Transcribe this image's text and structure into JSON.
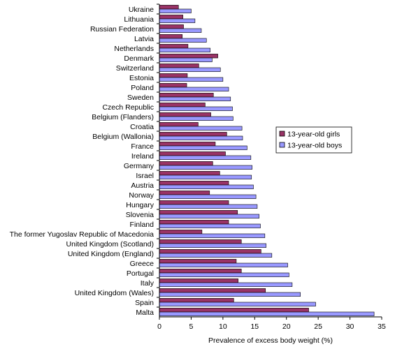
{
  "chart_data": {
    "type": "bar",
    "orientation": "horizontal",
    "categories": [
      "Ukraine",
      "Lithuania",
      "Russian Federation",
      "Latvia",
      "Netherlands",
      "Denmark",
      "Switzerland",
      "Estonia",
      "Poland",
      "Sweden",
      "Czech Republic",
      "Belgium (Flanders)",
      "Croatia",
      "Belgium (Wallonia)",
      "France",
      "Ireland",
      "Germany",
      "Israel",
      "Austria",
      "Norway",
      "Hungary",
      "Slovenia",
      "Finland",
      "The former Yugoslav Republic of Macedonia",
      "United Kingdom (Scotland)",
      "United Kingdom (England)",
      "Greece",
      "Portugal",
      "Italy",
      "United Kingdom (Wales)",
      "Spain",
      "Malta"
    ],
    "series": [
      {
        "name": "13-year-old girls",
        "color": "#993366",
        "values": [
          3.0,
          3.7,
          3.8,
          3.6,
          4.5,
          9.2,
          6.2,
          4.4,
          4.3,
          8.5,
          7.2,
          8.1,
          6.1,
          10.6,
          8.8,
          10.4,
          8.4,
          9.5,
          10.9,
          7.9,
          10.9,
          12.3,
          10.9,
          6.7,
          12.9,
          16.0,
          12.1,
          12.9,
          12.4,
          16.7,
          11.7,
          23.5
        ]
      },
      {
        "name": "13-year-old boys",
        "color": "#9999ff",
        "values": [
          5.0,
          5.6,
          6.6,
          7.4,
          8.0,
          8.3,
          9.6,
          10.0,
          10.9,
          11.2,
          11.5,
          11.6,
          13.0,
          13.1,
          13.8,
          14.4,
          14.6,
          14.5,
          14.8,
          15.2,
          15.4,
          15.7,
          15.9,
          16.6,
          16.8,
          17.7,
          20.2,
          20.4,
          20.9,
          22.2,
          24.6,
          33.8
        ]
      }
    ],
    "xlabel": "Prevalence of excess body weight (%)",
    "xlim": [
      0,
      35
    ],
    "xticks": [
      "0",
      "5",
      "10",
      "15",
      "20",
      "25",
      "30",
      "35"
    ],
    "legend_position": "right",
    "grid": false
  }
}
